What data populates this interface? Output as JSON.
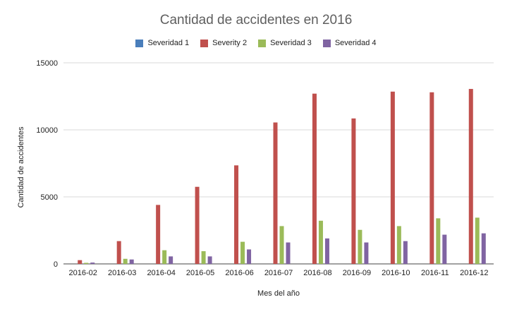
{
  "chart_data": {
    "type": "bar",
    "title": "Cantidad de accidentes en 2016",
    "xlabel": "Mes del año",
    "ylabel": "Cantidad de accidentes",
    "ylim": [
      0,
      15000
    ],
    "yticks": [
      "0",
      "5000",
      "10000",
      "15000"
    ],
    "grid": "horizontal",
    "legend_position": "top",
    "categories": [
      "2016-02",
      "2016-03",
      "2016-04",
      "2016-05",
      "2016-06",
      "2016-07",
      "2016-08",
      "2016-09",
      "2016-10",
      "2016-11",
      "2016-12"
    ],
    "series": [
      {
        "name": "Severidad 1",
        "color": "#4a7ebb",
        "values": [
          0,
          0,
          0,
          0,
          0,
          0,
          0,
          0,
          0,
          0,
          0
        ]
      },
      {
        "name": "Severity 2",
        "color": "#c0504d",
        "values": [
          280,
          1700,
          4400,
          5750,
          7350,
          10550,
          12700,
          10850,
          12850,
          12800,
          13050
        ]
      },
      {
        "name": "Severidad 3",
        "color": "#9bbb59",
        "values": [
          80,
          380,
          1020,
          950,
          1650,
          2820,
          3220,
          2540,
          2820,
          3400,
          3450
        ]
      },
      {
        "name": "Severidad 4",
        "color": "#8064a2",
        "values": [
          100,
          330,
          560,
          560,
          1080,
          1600,
          1900,
          1600,
          1700,
          2180,
          2280
        ]
      }
    ]
  }
}
